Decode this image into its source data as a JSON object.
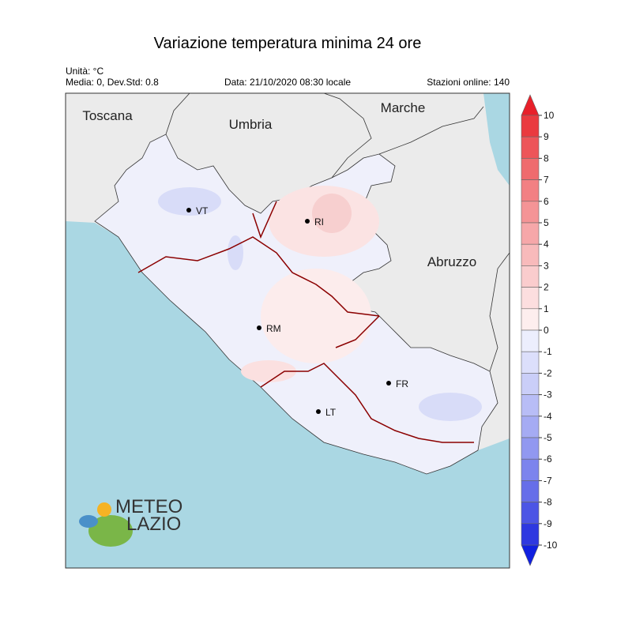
{
  "header": {
    "title": "Variazione temperatura minima 24 ore",
    "unit": "Unità: °C",
    "stats": "Media: 0, Dev.Std: 0.8",
    "date": "Data: 21/10/2020 08:30 locale",
    "stations": "Stazioni online: 140"
  },
  "map": {
    "regions": [
      "Toscana",
      "Umbria",
      "Marche",
      "Abruzzo"
    ],
    "cities": [
      "VT",
      "RI",
      "RM",
      "LT",
      "FR"
    ]
  },
  "colorbar": {
    "ticks": [
      10,
      9,
      8,
      7,
      6,
      5,
      4,
      3,
      2,
      1,
      0,
      -1,
      -2,
      -3,
      -4,
      -5,
      -6,
      -7,
      -8,
      -9,
      -10
    ],
    "colors": [
      "#ea3a3f",
      "#ed5559",
      "#ef6b6e",
      "#f28083",
      "#f49496",
      "#f6a7a9",
      "#f8babb",
      "#facccd",
      "#fcdedf",
      "#fdeeee",
      "#eceefd",
      "#dcdffb",
      "#cacef8",
      "#b8bdf6",
      "#a5abf3",
      "#9198f0",
      "#7c84ed",
      "#666ee9",
      "#4c55e5",
      "#2e38e0"
    ]
  },
  "logo": {
    "line1": "METEO",
    "line2": "LAZIO"
  }
}
